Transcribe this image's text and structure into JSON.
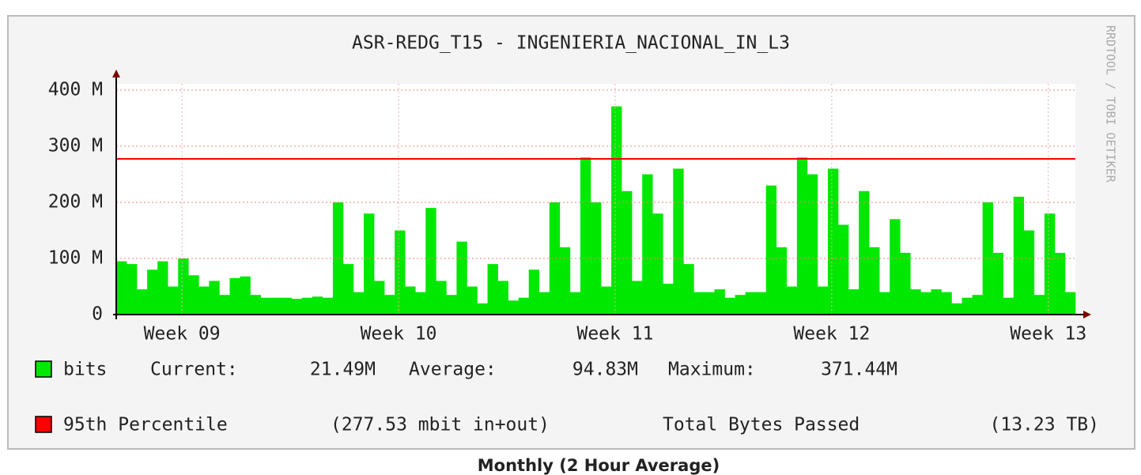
{
  "chart_data": {
    "type": "area",
    "title": "ASR-REDG_T15 - INGENIERIA_NACIONAL_IN_L3",
    "watermark": "RRDTOOL / TOBI OETIKER",
    "caption": "Monthly (2 Hour Average)",
    "xlim": [
      0,
      744
    ],
    "xticks": [
      {
        "value": 51,
        "label": "Week 09"
      },
      {
        "value": 219,
        "label": "Week 10"
      },
      {
        "value": 387,
        "label": "Week 11"
      },
      {
        "value": 555,
        "label": "Week 12"
      },
      {
        "value": 723,
        "label": "Week 13"
      }
    ],
    "ylim": [
      0,
      400
    ],
    "yticks": [
      {
        "value": 0,
        "label": "0"
      },
      {
        "value": 100,
        "label": "100 M"
      },
      {
        "value": 200,
        "label": "200 M"
      },
      {
        "value": 300,
        "label": "300 M"
      },
      {
        "value": 400,
        "label": "400 M"
      }
    ],
    "grid": true,
    "x": [
      0,
      8,
      16,
      24,
      32,
      40,
      48,
      56,
      64,
      72,
      80,
      88,
      96,
      104,
      112,
      120,
      128,
      136,
      144,
      152,
      160,
      168,
      176,
      184,
      192,
      200,
      208,
      216,
      224,
      232,
      240,
      248,
      256,
      264,
      272,
      280,
      288,
      296,
      304,
      312,
      320,
      328,
      336,
      344,
      352,
      360,
      368,
      376,
      384,
      392,
      400,
      408,
      416,
      424,
      432,
      440,
      448,
      456,
      464,
      472,
      480,
      488,
      496,
      504,
      512,
      520,
      528,
      536,
      544,
      552,
      560,
      568,
      576,
      584,
      592,
      600,
      608,
      616,
      624,
      632,
      640,
      648,
      656,
      664,
      672,
      680,
      688,
      696,
      704,
      712,
      720,
      728,
      736
    ],
    "series": [
      {
        "name": "bits",
        "color": "#00e800",
        "values": [
          95,
          90,
          45,
          80,
          95,
          50,
          100,
          70,
          50,
          60,
          35,
          65,
          68,
          35,
          30,
          30,
          30,
          28,
          30,
          32,
          30,
          200,
          90,
          40,
          180,
          60,
          35,
          150,
          50,
          40,
          190,
          60,
          35,
          130,
          50,
          20,
          90,
          60,
          25,
          30,
          80,
          40,
          200,
          120,
          40,
          280,
          200,
          50,
          371,
          220,
          60,
          250,
          180,
          55,
          260,
          90,
          40,
          40,
          45,
          30,
          35,
          40,
          40,
          230,
          120,
          50,
          280,
          250,
          50,
          260,
          160,
          45,
          220,
          120,
          40,
          170,
          110,
          45,
          40,
          45,
          40,
          20,
          30,
          35,
          200,
          110,
          30,
          210,
          150,
          35,
          180,
          110,
          40
        ],
        "stats": [
          {
            "label": "Current:",
            "value": "21.49M"
          },
          {
            "label": "Average:",
            "value": "94.83M"
          },
          {
            "label": "Maximum:",
            "value": "371.44M"
          }
        ]
      }
    ],
    "percentile": {
      "name": "95th Percentile",
      "value": 277.53,
      "color": "#ff0000",
      "label": "(277.53 mbit in+out)"
    },
    "total": {
      "label": "Total Bytes Passed",
      "value": "(13.23 TB)"
    }
  }
}
